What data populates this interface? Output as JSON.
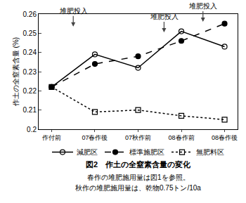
{
  "chart_data": {
    "type": "line",
    "title": "図2　作土の全窒素含量の変化",
    "notes": [
      "春作の堆肥施用量は図1を参照。",
      "秋作の堆肥施用量は、乾物0.75トン/10a"
    ],
    "y_label": "作土の全窒素含量 (%)",
    "categories": [
      "作付前",
      "07春作後",
      "07秋作前",
      "08春作前",
      "08春作後"
    ],
    "series": [
      {
        "name": "減肥区",
        "color": "#000000",
        "marker": "circle-open",
        "line_style": "solid",
        "values": [
          0.222,
          0.239,
          0.232,
          0.251,
          0.243
        ]
      },
      {
        "name": "標準施肥区",
        "color": "#000000",
        "marker": "circle",
        "line_style": "dash",
        "values": [
          0.222,
          0.234,
          0.238,
          0.246,
          0.255
        ]
      },
      {
        "name": "無肥料区",
        "color": "#000000",
        "marker": "square-open",
        "line_style": "dot",
        "values": [
          0.222,
          0.209,
          0.21,
          0.207,
          0.205
        ]
      }
    ],
    "annotations": [
      {
        "text": "堆肥投入",
        "x": 0.5,
        "y": 0.2535
      },
      {
        "text": "堆肥投入",
        "x": 2.6,
        "y": 0.2505
      },
      {
        "text": "堆肥投入",
        "x": 3.5,
        "y": 0.256
      }
    ],
    "ylim": [
      0.2,
      0.26
    ],
    "yticks": [
      0.2,
      0.21,
      0.22,
      0.23,
      0.24,
      0.25,
      0.26
    ],
    "grid": false,
    "legend": "bottom"
  }
}
